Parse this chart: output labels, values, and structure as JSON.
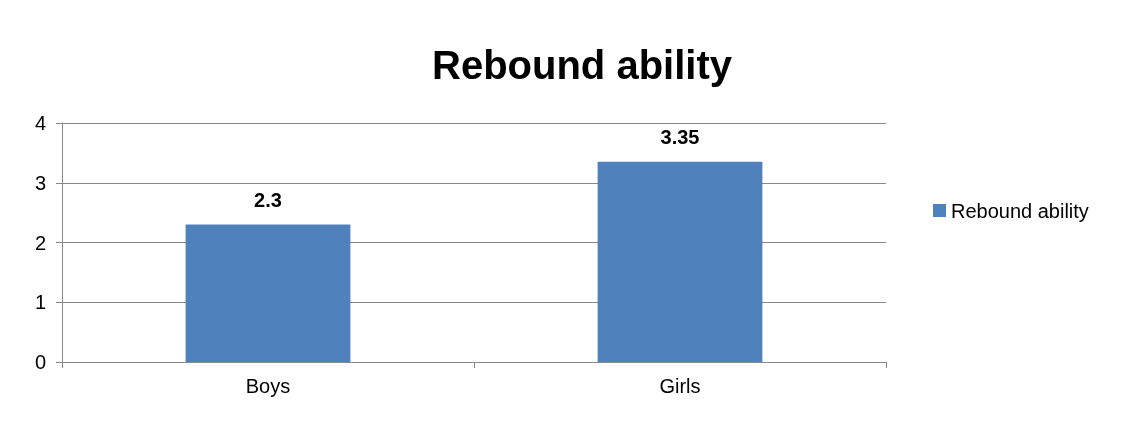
{
  "chart_data": {
    "type": "bar",
    "title": "Rebound ability",
    "categories": [
      "Boys",
      "Girls"
    ],
    "series": [
      {
        "name": "Rebound ability",
        "color": "#4f81bd",
        "values": [
          2.3,
          3.35
        ]
      }
    ],
    "ylim": [
      0,
      4
    ],
    "yticks": [
      0,
      1,
      2,
      3,
      4
    ],
    "grid": "y",
    "legend": "right",
    "data_labels": true
  }
}
